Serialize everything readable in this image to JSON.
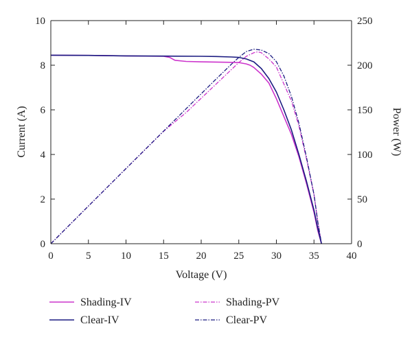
{
  "chart_data": {
    "type": "line",
    "xlabel": "Voltage (V)",
    "ylabel_left": "Current (A)",
    "ylabel_right": "Power (W)",
    "xlim": [
      0,
      40
    ],
    "ylim_left": [
      0,
      10
    ],
    "ylim_right": [
      0,
      250
    ],
    "xticks": [
      "0",
      "5",
      "10",
      "15",
      "20",
      "25",
      "30",
      "35",
      "40"
    ],
    "yticks_left": [
      "0",
      "2",
      "4",
      "6",
      "8",
      "10"
    ],
    "yticks_right": [
      "0",
      "50",
      "100",
      "150",
      "200",
      "250"
    ],
    "grid": false,
    "legend_position": "bottom",
    "series": [
      {
        "name": "Shading-IV",
        "axis": "left",
        "style": "solid",
        "color": "#cc33cc",
        "x": [
          0,
          5,
          10,
          15,
          15.8,
          16.5,
          18,
          20,
          22,
          24,
          25,
          26,
          26.5,
          27,
          28,
          29,
          30,
          31,
          32,
          33,
          34,
          35,
          35.5,
          36
        ],
        "y": [
          8.45,
          8.44,
          8.42,
          8.4,
          8.35,
          8.22,
          8.17,
          8.15,
          8.14,
          8.13,
          8.12,
          8.06,
          8.0,
          7.9,
          7.6,
          7.2,
          6.5,
          5.7,
          4.9,
          3.9,
          2.7,
          1.4,
          0.6,
          0
        ]
      },
      {
        "name": "Clear-IV",
        "axis": "left",
        "style": "solid",
        "color": "#1a1a80",
        "x": [
          0,
          5,
          10,
          15,
          20,
          22,
          24,
          25,
          26,
          27,
          28,
          29,
          30,
          31,
          32,
          33,
          34,
          35,
          35.5,
          36
        ],
        "y": [
          8.45,
          8.44,
          8.42,
          8.41,
          8.4,
          8.39,
          8.37,
          8.35,
          8.28,
          8.15,
          7.85,
          7.4,
          6.8,
          6.0,
          5.1,
          4.0,
          2.8,
          1.5,
          0.7,
          0
        ]
      },
      {
        "name": "Shading-PV",
        "axis": "right",
        "style": "dashdot",
        "color": "#cc33cc",
        "x": [
          0,
          5,
          10,
          15,
          18,
          20,
          22,
          24,
          25,
          26,
          27,
          27.5,
          28,
          29,
          30,
          31,
          32,
          33,
          34,
          35,
          35.5,
          36
        ],
        "y": [
          0,
          42.2,
          84.2,
          126,
          147,
          163,
          179,
          195,
          203,
          210,
          214,
          215,
          214,
          207,
          198,
          179,
          160,
          132,
          95,
          55,
          25,
          0
        ]
      },
      {
        "name": "Clear-PV",
        "axis": "right",
        "style": "dashdot",
        "color": "#1a1a80",
        "x": [
          0,
          5,
          10,
          15,
          20,
          22,
          24,
          25,
          26,
          27,
          28,
          29,
          30,
          31,
          32,
          33,
          34,
          35,
          35.5,
          36
        ],
        "y": [
          0,
          42.2,
          84.2,
          126.2,
          168,
          184.6,
          201,
          208.8,
          215.3,
          218,
          217,
          213,
          204,
          188,
          165,
          135,
          97,
          55,
          25,
          0
        ]
      }
    ]
  }
}
